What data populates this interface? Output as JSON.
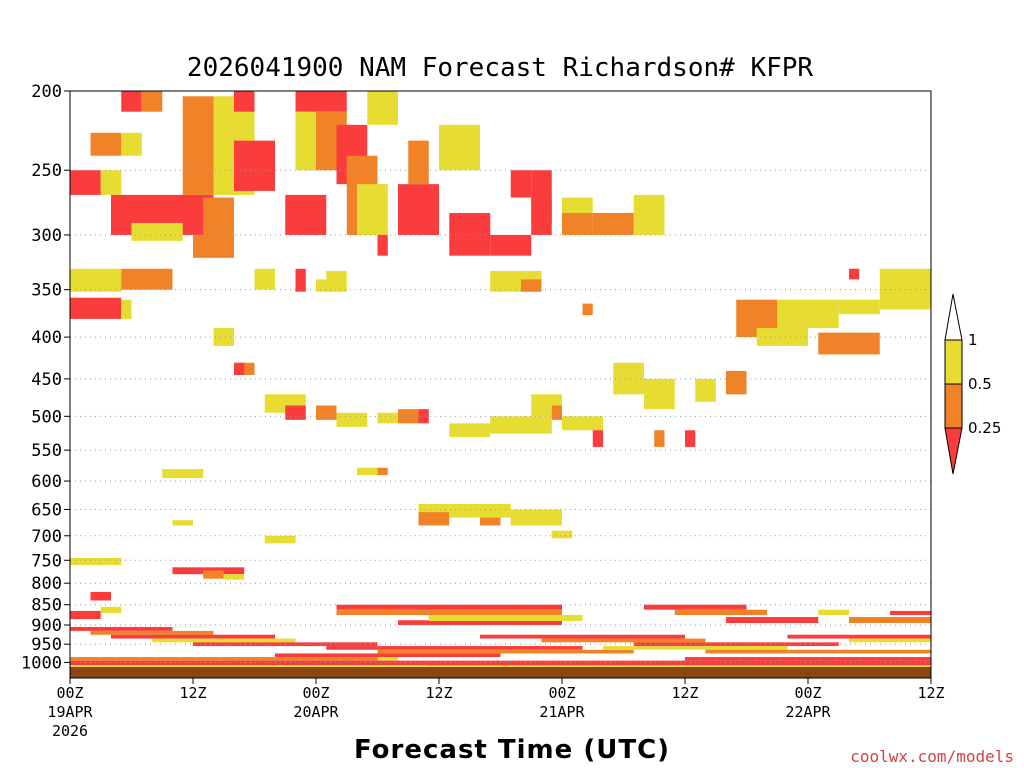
{
  "chart_data": {
    "type": "heatmap",
    "title": "2026041900 NAM Forecast Richardson# KFPR",
    "xlabel": "Forecast Time (UTC)",
    "ylabel": "",
    "credit": "coolwx.com/models",
    "x_range_hours": [
      0,
      84
    ],
    "y_range_hpa": [
      1025,
      200
    ],
    "y_ticks": [
      "200",
      "250",
      "300",
      "350",
      "400",
      "450",
      "500",
      "550",
      "600",
      "650",
      "700",
      "750",
      "800",
      "850",
      "900",
      "950",
      "1000"
    ],
    "x_ticks": [
      {
        "hour": 0,
        "line1": "00Z",
        "line2": "19APR",
        "line3": "2026"
      },
      {
        "hour": 12,
        "line1": "12Z",
        "line2": "",
        "line3": ""
      },
      {
        "hour": 24,
        "line1": "00Z",
        "line2": "20APR",
        "line3": ""
      },
      {
        "hour": 36,
        "line1": "12Z",
        "line2": "",
        "line3": ""
      },
      {
        "hour": 48,
        "line1": "00Z",
        "line2": "21APR",
        "line3": ""
      },
      {
        "hour": 60,
        "line1": "12Z",
        "line2": "",
        "line3": ""
      },
      {
        "hour": 72,
        "line1": "00Z",
        "line2": "22APR",
        "line3": ""
      },
      {
        "hour": 84,
        "line1": "12Z",
        "line2": "",
        "line3": ""
      }
    ],
    "legend": {
      "labels": [
        "1",
        "0.5",
        "0.25"
      ],
      "categories": [
        {
          "code": "y",
          "name": "0.5 to 1",
          "color": "#e6dc32"
        },
        {
          "code": "o",
          "name": "0.25 to 0.5",
          "color": "#f08228"
        },
        {
          "code": "r",
          "name": "below 0.25",
          "color": "#fa3c3c"
        }
      ]
    },
    "colors": {
      "y": "#e6dc32",
      "o": "#f08228",
      "r": "#fa3c3c",
      "ground": "#8b4513",
      "grid": "#999999"
    },
    "value_encoding": "category per cell: y = Ri 0.5–1, o = Ri 0.25–0.5, r = Ri < 0.25; bands are [hour_start, hour_end, p_top_hPa, p_bottom_hPa]",
    "bands": [
      [
        "r",
        0,
        3,
        250,
        268
      ],
      [
        "y",
        3,
        5,
        250,
        268
      ],
      [
        "r",
        4,
        14,
        268,
        300
      ],
      [
        "o",
        11,
        14,
        203,
        268
      ],
      [
        "y",
        6,
        11,
        290,
        305
      ],
      [
        "o",
        13,
        16,
        270,
        300
      ],
      [
        "y",
        14,
        18,
        203,
        268
      ],
      [
        "r",
        16,
        20,
        230,
        265
      ],
      [
        "o",
        12,
        16,
        300,
        320
      ],
      [
        "r",
        5,
        7,
        200,
        212
      ],
      [
        "o",
        7,
        9,
        200,
        212
      ],
      [
        "o",
        2,
        5,
        225,
        240
      ],
      [
        "y",
        5,
        7,
        225,
        240
      ],
      [
        "r",
        16,
        18,
        200,
        212
      ],
      [
        "r",
        22,
        27,
        200,
        212
      ],
      [
        "o",
        23,
        27,
        212,
        250
      ],
      [
        "y",
        22,
        24,
        212,
        250
      ],
      [
        "r",
        26,
        29,
        220,
        260
      ],
      [
        "r",
        21,
        25,
        268,
        300
      ],
      [
        "o",
        27,
        30,
        240,
        300
      ],
      [
        "y",
        28,
        31,
        260,
        300
      ],
      [
        "y",
        29,
        32,
        200,
        220
      ],
      [
        "r",
        32,
        36,
        260,
        300
      ],
      [
        "o",
        33,
        35,
        230,
        260
      ],
      [
        "y",
        36,
        40,
        220,
        250
      ],
      [
        "r",
        35,
        36,
        268,
        300
      ],
      [
        "r",
        37,
        41,
        282,
        318
      ],
      [
        "r",
        41,
        45,
        300,
        318
      ],
      [
        "o",
        45,
        47,
        270,
        290
      ],
      [
        "r",
        43,
        45,
        250,
        270
      ],
      [
        "r",
        45,
        47,
        250,
        300
      ],
      [
        "y",
        48,
        51,
        270,
        300
      ],
      [
        "o",
        48,
        51,
        282,
        300
      ],
      [
        "o",
        51,
        55,
        282,
        300
      ],
      [
        "y",
        55,
        58,
        268,
        300
      ],
      [
        "r",
        30,
        31,
        300,
        318
      ],
      [
        "y",
        0,
        5,
        330,
        352
      ],
      [
        "o",
        5,
        10,
        330,
        350
      ],
      [
        "r",
        0,
        5,
        358,
        380
      ],
      [
        "y",
        5,
        6,
        360,
        380
      ],
      [
        "y",
        18,
        20,
        330,
        350
      ],
      [
        "r",
        22,
        23,
        330,
        352
      ],
      [
        "y",
        24,
        26,
        340,
        352
      ],
      [
        "y",
        25,
        27,
        332,
        352
      ],
      [
        "y",
        41,
        46,
        332,
        352
      ],
      [
        "o",
        44,
        46,
        340,
        352
      ],
      [
        "o",
        50,
        51,
        364,
        376
      ],
      [
        "o",
        65,
        69,
        360,
        400
      ],
      [
        "y",
        69,
        75,
        360,
        390
      ],
      [
        "y",
        75,
        79,
        360,
        375
      ],
      [
        "r",
        76,
        77,
        330,
        340
      ],
      [
        "y",
        79,
        84,
        330,
        370
      ],
      [
        "o",
        73,
        79,
        395,
        420
      ],
      [
        "y",
        67,
        72,
        390,
        410
      ],
      [
        "y",
        14,
        16,
        390,
        410
      ],
      [
        "o",
        16,
        18,
        430,
        445
      ],
      [
        "r",
        16,
        17,
        430,
        445
      ],
      [
        "y",
        19,
        23,
        470,
        495
      ],
      [
        "r",
        21,
        23,
        485,
        505
      ],
      [
        "o",
        24,
        26,
        485,
        505
      ],
      [
        "y",
        26,
        29,
        495,
        515
      ],
      [
        "o",
        32,
        34,
        490,
        510
      ],
      [
        "r",
        34,
        35,
        490,
        510
      ],
      [
        "y",
        30,
        32,
        495,
        510
      ],
      [
        "y",
        37,
        41,
        510,
        530
      ],
      [
        "y",
        41,
        47,
        500,
        525
      ],
      [
        "y",
        45,
        48,
        470,
        500
      ],
      [
        "o",
        47,
        48,
        485,
        505
      ],
      [
        "y",
        48,
        52,
        500,
        520
      ],
      [
        "r",
        51,
        52,
        520,
        545
      ],
      [
        "y",
        53,
        56,
        430,
        470
      ],
      [
        "y",
        56,
        59,
        450,
        490
      ],
      [
        "y",
        61,
        63,
        450,
        480
      ],
      [
        "o",
        64,
        66,
        440,
        470
      ],
      [
        "o",
        57,
        58,
        520,
        545
      ],
      [
        "r",
        60,
        61,
        520,
        545
      ],
      [
        "y",
        9,
        13,
        580,
        595
      ],
      [
        "y",
        28,
        30,
        578,
        590
      ],
      [
        "o",
        30,
        31,
        578,
        590
      ],
      [
        "y",
        34,
        37,
        640,
        660
      ],
      [
        "o",
        34,
        37,
        655,
        680
      ],
      [
        "y",
        37,
        43,
        640,
        665
      ],
      [
        "y",
        43,
        48,
        650,
        680
      ],
      [
        "o",
        40,
        42,
        665,
        680
      ],
      [
        "y",
        47,
        49,
        690,
        705
      ],
      [
        "y",
        10,
        12,
        670,
        680
      ],
      [
        "y",
        19,
        22,
        700,
        715
      ],
      [
        "y",
        0,
        5,
        745,
        760
      ],
      [
        "r",
        10,
        17,
        765,
        780
      ],
      [
        "o",
        13,
        15,
        772,
        790
      ],
      [
        "y",
        15,
        17,
        780,
        792
      ],
      [
        "r",
        2,
        4,
        820,
        840
      ],
      [
        "r",
        0,
        3,
        865,
        885
      ],
      [
        "y",
        3,
        5,
        855,
        870
      ],
      [
        "r",
        26,
        48,
        850,
        862
      ],
      [
        "o",
        26,
        48,
        862,
        875
      ],
      [
        "r",
        32,
        48,
        888,
        900
      ],
      [
        "y",
        35,
        50,
        875,
        890
      ],
      [
        "r",
        56,
        66,
        850,
        862
      ],
      [
        "o",
        59,
        68,
        862,
        875
      ],
      [
        "r",
        64,
        73,
        880,
        895
      ],
      [
        "y",
        73,
        76,
        862,
        875
      ],
      [
        "o",
        76,
        84,
        880,
        895
      ],
      [
        "r",
        80,
        84,
        865,
        875
      ],
      [
        "r",
        0,
        10,
        905,
        915
      ],
      [
        "o",
        2,
        14,
        915,
        925
      ],
      [
        "r",
        4,
        20,
        925,
        935
      ],
      [
        "y",
        8,
        22,
        935,
        945
      ],
      [
        "r",
        12,
        30,
        945,
        955
      ],
      [
        "r",
        25,
        50,
        955,
        965
      ],
      [
        "o",
        30,
        55,
        965,
        975
      ],
      [
        "r",
        20,
        42,
        975,
        985
      ],
      [
        "y",
        15,
        32,
        985,
        995
      ],
      [
        "r",
        40,
        60,
        925,
        935
      ],
      [
        "o",
        46,
        62,
        935,
        945
      ],
      [
        "r",
        55,
        75,
        945,
        955
      ],
      [
        "y",
        52,
        70,
        955,
        965
      ],
      [
        "r",
        60,
        84,
        985,
        995
      ],
      [
        "o",
        62,
        84,
        965,
        975
      ],
      [
        "r",
        70,
        84,
        925,
        935
      ],
      [
        "y",
        76,
        84,
        935,
        945
      ],
      [
        "r",
        0,
        84,
        995,
        1008
      ],
      [
        "o",
        0,
        30,
        985,
        995
      ],
      [
        "r",
        35,
        84,
        1000,
        1010
      ],
      [
        "y",
        0,
        84,
        1008,
        1013
      ]
    ]
  }
}
